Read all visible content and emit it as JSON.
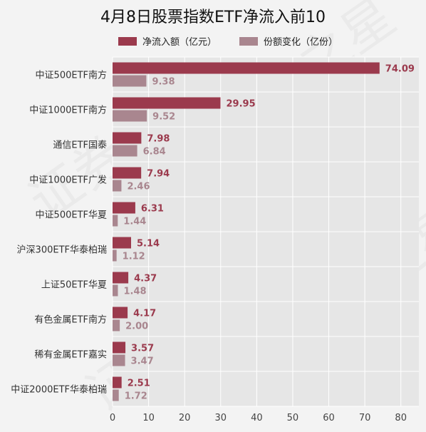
{
  "chart_data": {
    "type": "bar",
    "orientation": "horizontal",
    "title": "4月8日股票指数ETF净流入前10",
    "categories": [
      "中证500ETF南方",
      "中证1000ETF南方",
      "通信ETF国泰",
      "中证1000ETF广发",
      "中证500ETF华夏",
      "沪深300ETF华泰柏瑞",
      "上证50ETF华夏",
      "有色金属ETF南方",
      "稀有金属ETF嘉实",
      "中证2000ETF华泰柏瑞"
    ],
    "series": [
      {
        "name": "净流入额（亿元）",
        "color": "#9b3a4d",
        "values": [
          74.09,
          29.95,
          7.98,
          7.94,
          6.31,
          5.14,
          4.37,
          4.17,
          3.57,
          2.51
        ],
        "labels": [
          "74.09",
          "29.95",
          "7.98",
          "7.94",
          "6.31",
          "5.14",
          "4.37",
          "4.17",
          "3.57",
          "2.51"
        ]
      },
      {
        "name": "份额变化（亿份）",
        "color": "#a9868f",
        "values": [
          9.38,
          9.52,
          6.84,
          2.46,
          1.44,
          1.12,
          1.48,
          2.0,
          3.47,
          1.72
        ],
        "labels": [
          "9.38",
          "9.52",
          "6.84",
          "2.46",
          "1.44",
          "1.12",
          "1.48",
          "2.00",
          "3.47",
          "1.72"
        ]
      }
    ],
    "xlim": [
      0,
      85
    ],
    "xticks": [
      0,
      10,
      20,
      30,
      40,
      50,
      60,
      70,
      80
    ],
    "grid": true,
    "legend_position": "top"
  },
  "watermark": "证券之星"
}
